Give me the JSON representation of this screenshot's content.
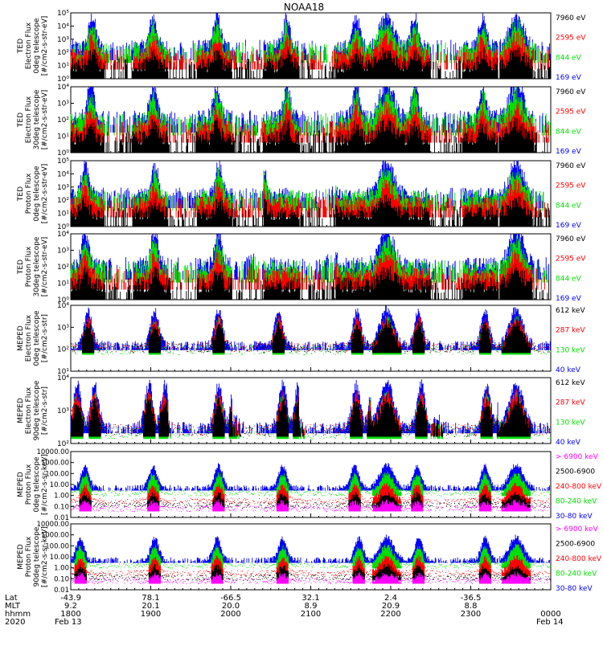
{
  "title": "NOAA18",
  "colors": {
    "blue": "#0000ff",
    "red": "#ff0000",
    "green": "#00e000",
    "black": "#000000",
    "magenta": "#ff00ff"
  },
  "footer": {
    "rows": [
      {
        "label": "Lat",
        "values": [
          "-43.9",
          "78.1",
          "-66.5",
          "32.1",
          "2.4",
          "-36.5"
        ]
      },
      {
        "label": "MLT",
        "values": [
          "9.2",
          "20.1",
          "20.0",
          "8.9",
          "20.9",
          "8.8"
        ]
      },
      {
        "label": "hhmm",
        "values": [
          "1800",
          "1900",
          "2000",
          "2100",
          "2200",
          "2300",
          "0000"
        ]
      },
      {
        "label": "2020",
        "values": [
          "Feb 13",
          "Feb 14"
        ]
      }
    ]
  },
  "chart_data": [
    {
      "type": "line",
      "ylabel": [
        "TED",
        "Electron Flux",
        "0deg telescope",
        "[#/cm2-s-str-eV]"
      ],
      "yticks": [
        "10⁰",
        "10¹",
        "10²",
        "10³",
        "10⁴",
        "10⁵"
      ],
      "ylim": [
        0,
        5
      ],
      "log": true,
      "legend": [
        {
          "name": "7960 eV",
          "color": "black"
        },
        {
          "name": "2595 eV",
          "color": "red"
        },
        {
          "name": "844 eV",
          "color": "green"
        },
        {
          "name": "169 eV",
          "color": "blue"
        }
      ],
      "xlim": [
        1800,
        2400
      ],
      "peaks": [
        1827,
        1903,
        1983,
        2070,
        2157,
        2230,
        2315
      ],
      "auroral": [
        1820,
        1900,
        1980,
        2063,
        2153,
        2227,
        2312
      ],
      "belt": [
        2195,
        2357
      ]
    },
    {
      "type": "line",
      "ylabel": [
        "TED",
        "Electron Flux",
        "30deg telescope",
        "[#/cm2-s-str-eV]"
      ],
      "yticks": [
        "10⁰",
        "10¹",
        "10²",
        "10³",
        "10⁴"
      ],
      "ylim": [
        0,
        4.6
      ],
      "log": true,
      "legend": [
        {
          "name": "7960 eV",
          "color": "black"
        },
        {
          "name": "2595 eV",
          "color": "red"
        },
        {
          "name": "844 eV",
          "color": "green"
        },
        {
          "name": "169 eV",
          "color": "blue"
        }
      ],
      "xlim": [
        1800,
        2400
      ],
      "peaks": [
        1825,
        1903,
        1983,
        2070,
        2157,
        2230,
        2315
      ],
      "auroral": [
        1820,
        1900,
        1980,
        2063,
        2153,
        2227,
        2312
      ],
      "belt": [
        2195,
        2357
      ]
    },
    {
      "type": "line",
      "ylabel": [
        "TED",
        "Proton Flux",
        "0deg telescope",
        "[#/cm2-s-str-eV]"
      ],
      "yticks": [
        "10⁰",
        "10¹",
        "10²",
        "10³",
        "10⁴",
        "10⁵"
      ],
      "ylim": [
        0,
        5
      ],
      "log": true,
      "legend": [
        {
          "name": "7960 eV",
          "color": "black"
        },
        {
          "name": "2595 eV",
          "color": "red"
        },
        {
          "name": "844 eV",
          "color": "green"
        },
        {
          "name": "169 eV",
          "color": "blue"
        }
      ],
      "xlim": [
        1800,
        2400
      ],
      "peaks": [
        1818,
        1905,
        1985,
        2040,
        2125,
        2190,
        2360
      ],
      "auroral": [
        1820,
        1900,
        1980,
        2063,
        2153,
        2227,
        2312
      ],
      "belt": [
        2195,
        2357
      ]
    },
    {
      "type": "line",
      "ylabel": [
        "TED",
        "Proton Flux",
        "30deg telescope",
        "[#/cm2-s-str-eV]"
      ],
      "yticks": [
        "10⁰",
        "10¹",
        "10²",
        "10³",
        "10⁴"
      ],
      "ylim": [
        0,
        4.6
      ],
      "log": true,
      "legend": [
        {
          "name": "7960 eV",
          "color": "black"
        },
        {
          "name": "2595 eV",
          "color": "red"
        },
        {
          "name": "844 eV",
          "color": "green"
        },
        {
          "name": "169 eV",
          "color": "blue"
        }
      ],
      "xlim": [
        1800,
        2400
      ],
      "peaks": [
        1818,
        1905,
        1985,
        2030,
        2125,
        2190,
        2355
      ],
      "auroral": [
        1820,
        1900,
        1980,
        2063,
        2153,
        2227,
        2312
      ],
      "belt": [
        2195,
        2357
      ]
    },
    {
      "type": "line",
      "ylabel": [
        "MEPED",
        "Electron Flux",
        "0deg telescope",
        "[#/cm2-s-str]"
      ],
      "yticks": [
        "10¹",
        "10²",
        "10³",
        "10⁴"
      ],
      "ylim": [
        1,
        4.6
      ],
      "log": true,
      "legend": [
        {
          "name": "612 keV",
          "color": "black"
        },
        {
          "name": "287 keV",
          "color": "red"
        },
        {
          "name": "130 keV",
          "color": "green"
        },
        {
          "name": "40 keV",
          "color": "blue"
        }
      ],
      "xlim": [
        1800,
        2400
      ],
      "peaks": [
        1822,
        1905,
        1985,
        2060,
        2158,
        2235,
        2318
      ],
      "auroral": [
        1820,
        1900,
        1980,
        2063,
        2153,
        2227,
        2312
      ],
      "belt": [
        2195,
        2357
      ]
    },
    {
      "type": "line",
      "ylabel": [
        "MEPED",
        "Electron Flux",
        "90deg telescope",
        "[#/cm2-s-str]"
      ],
      "yticks": [
        "10²",
        "10³",
        "10⁴"
      ],
      "ylim": [
        1.7,
        4.6
      ],
      "log": true,
      "legend": [
        {
          "name": "612 keV",
          "color": "black"
        },
        {
          "name": "287 keV",
          "color": "red"
        },
        {
          "name": "130 keV",
          "color": "green"
        },
        {
          "name": "40 keV",
          "color": "blue"
        }
      ],
      "xlim": [
        1800,
        2400
      ],
      "peaks": [
        1808,
        1830,
        1898,
        1918,
        1985,
        2005,
        2065,
        2085,
        2157,
        2178,
        2238,
        2258,
        2320,
        2340
      ],
      "auroral": [
        1820,
        1900,
        1980,
        2063,
        2153,
        2227,
        2312
      ],
      "belt": [
        2195,
        2357
      ]
    },
    {
      "type": "line",
      "ylabel": [
        "MEPED",
        "Proton Flux",
        "0deg telescope",
        "[#/cm2-s-sr-keV]"
      ],
      "yticks": [
        "0.01",
        "0.10",
        "1.00",
        "10.00",
        "100.00",
        "1000.00",
        "10000.00"
      ],
      "ylim": [
        -2,
        4
      ],
      "log": true,
      "legend": [
        {
          "name": "> 6900 keV",
          "color": "magenta"
        },
        {
          "name": "2500-6900",
          "color": "black"
        },
        {
          "name": "240-800 keV",
          "color": "red"
        },
        {
          "name": "80-240 keV",
          "color": "green"
        },
        {
          "name": "30-80 keV",
          "color": "blue"
        }
      ],
      "xlim": [
        1800,
        2400
      ],
      "peaks": [
        1818,
        1903,
        1985,
        2065,
        2155,
        2233,
        2318
      ],
      "auroral": [
        1820,
        1900,
        1980,
        2063,
        2153,
        2227,
        2312
      ],
      "belt": [
        2195,
        2357
      ]
    },
    {
      "type": "line",
      "ylabel": [
        "MEPED",
        "Proton Flux",
        "90deg telescope",
        "[#/cm2-s-sr-keV]"
      ],
      "yticks": [
        "0.01",
        "0.10",
        "1.00",
        "10.00",
        "100.00",
        "1000.00",
        "10000.00"
      ],
      "ylim": [
        -2,
        4
      ],
      "log": true,
      "legend": [
        {
          "name": "> 6900 keV",
          "color": "magenta"
        },
        {
          "name": "2500-6900",
          "color": "black"
        },
        {
          "name": "240-800 keV",
          "color": "red"
        },
        {
          "name": "80-240 keV",
          "color": "green"
        },
        {
          "name": "30-80 keV",
          "color": "blue"
        }
      ],
      "xlim": [
        1800,
        2400
      ],
      "peaks": [
        1812,
        1905,
        1983,
        2065,
        2160,
        2235,
        2318
      ],
      "auroral": [
        1820,
        1900,
        1980,
        2063,
        2153,
        2227,
        2312
      ],
      "belt": [
        2195,
        2357
      ]
    }
  ]
}
